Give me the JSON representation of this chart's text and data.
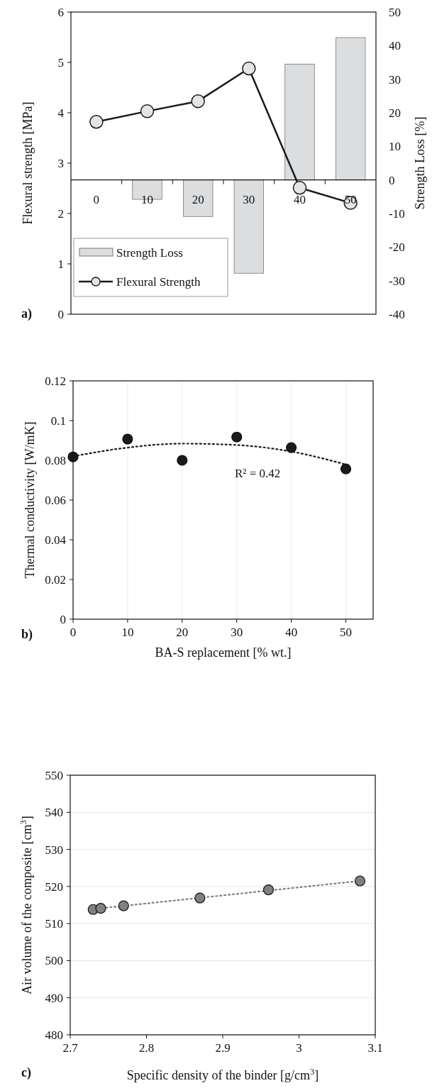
{
  "chart_data": [
    {
      "type": "bar",
      "categories": [
        "0",
        "10",
        "20",
        "30",
        "40",
        "50"
      ],
      "ylabel": "Flexural strength [MPa]",
      "y2label": "Strength Loss [%]",
      "ylim": [
        0,
        6
      ],
      "yticks": [
        0,
        1,
        2,
        3,
        4,
        5,
        6
      ],
      "y2lim": [
        -40,
        50
      ],
      "y2ticks": [
        -40,
        -30,
        -20,
        -10,
        0,
        10,
        20,
        30,
        40,
        50
      ],
      "legend": "bottom left",
      "annotations": [
        "a)"
      ],
      "series": [
        {
          "name": "Strength Loss",
          "axis": "y2",
          "color": "#dcdddf",
          "values": [
            0,
            -5.8,
            -10.9,
            -27.8,
            34.5,
            42.4
          ]
        },
        {
          "name": "Flexural Strength",
          "type": "line",
          "marker": "circle",
          "color": "#1a1a1a",
          "values": [
            3.82,
            4.03,
            4.23,
            4.88,
            2.51,
            2.21
          ]
        }
      ]
    },
    {
      "type": "scatter",
      "xlabel": "BA-S replacement [% wt.]",
      "ylabel": "Thermal conductivity [W/mK]",
      "xlim": [
        0,
        55
      ],
      "xticks": [
        0,
        10,
        20,
        30,
        40,
        50
      ],
      "ylim": [
        0,
        0.12
      ],
      "yticks": [
        0,
        0.02,
        0.04,
        0.06,
        0.08,
        0.1,
        0.12
      ],
      "grid": "x",
      "annotations": [
        "R² = 0.42",
        "b)"
      ],
      "series": [
        {
          "marker": "circle",
          "color": "#1a1a1a",
          "x": [
            0,
            10,
            20,
            30,
            40,
            50
          ],
          "values": [
            0.0817,
            0.0907,
            0.08,
            0.0917,
            0.0864,
            0.0757
          ]
        },
        {
          "type": "line",
          "marker": "none",
          "line_style": "dotted",
          "color": "#1a1a1a",
          "x": [
            0,
            10,
            20,
            30,
            40,
            50
          ],
          "values": [
            0.082,
            0.0864,
            0.0884,
            0.0877,
            0.0844,
            0.0779
          ]
        }
      ]
    },
    {
      "type": "scatter",
      "xlabel": "Specific density of the binder [g/cm$^{3}$]",
      "ylabel": "Air volume of the composite [cm$^{3}$]",
      "xlim": [
        2.7,
        3.1
      ],
      "xticks": [
        2.7,
        2.8,
        2.9,
        3,
        3.1
      ],
      "ylim": [
        480,
        550
      ],
      "yticks": [
        480,
        490,
        500,
        510,
        520,
        530,
        540,
        550
      ],
      "grid": "y",
      "annotations": [
        "c)"
      ],
      "series": [
        {
          "type": "line",
          "marker": "none",
          "line_style": "dotted",
          "color": "#808080",
          "x": [
            2.73,
            3.08
          ],
          "values": [
            513.9,
            521.5
          ]
        },
        {
          "marker": "circle",
          "color": "#808080",
          "x": [
            2.73,
            2.74,
            2.77,
            2.87,
            2.96,
            3.08
          ],
          "values": [
            513.8,
            514.1,
            514.8,
            516.9,
            519.1,
            521.5
          ]
        }
      ]
    }
  ]
}
